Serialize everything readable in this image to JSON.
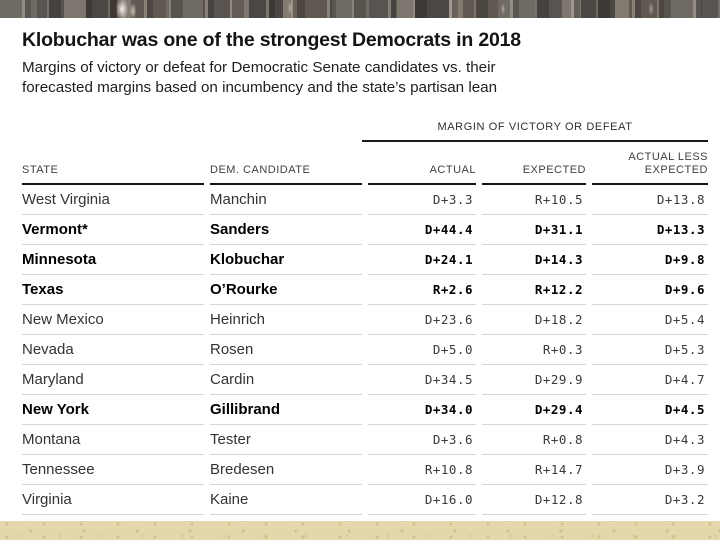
{
  "slide": {
    "top_photo_strip": "blurred-crowd-photo",
    "background_color": "#e8ddb8",
    "card_color": "#ffffff"
  },
  "header": {
    "title": "Klobuchar was one of the strongest Democrats in 2018",
    "subtitle_line1": "Margins of victory or defeat for Democratic Senate candidates vs. their",
    "subtitle_line2": "forecasted margins based on incumbency and the state’s partisan lean"
  },
  "chart_data": {
    "type": "table",
    "title": "Klobuchar was one of the strongest Democrats in 2018",
    "subtitle": "Margins of victory or defeat for Democratic Senate candidates vs. their forecasted margins based on incumbency and the state’s partisan lean",
    "column_group_header": "MARGIN OF VICTORY OR DEFEAT",
    "columns": {
      "state": "STATE",
      "candidate": "DEM. CANDIDATE",
      "actual": "ACTUAL",
      "expected": "EXPECTED",
      "diff": "ACTUAL LESS EXPECTED"
    },
    "rows": [
      {
        "state": "West Virginia",
        "candidate": "Manchin",
        "actual": "D+3.3",
        "expected": "R+10.5",
        "diff": "D+13.8",
        "bold": false
      },
      {
        "state": "Vermont*",
        "candidate": "Sanders",
        "actual": "D+44.4",
        "expected": "D+31.1",
        "diff": "D+13.3",
        "bold": true
      },
      {
        "state": "Minnesota",
        "candidate": "Klobuchar",
        "actual": "D+24.1",
        "expected": "D+14.3",
        "diff": "D+9.8",
        "bold": true
      },
      {
        "state": "Texas",
        "candidate": "O’Rourke",
        "actual": "R+2.6",
        "expected": "R+12.2",
        "diff": "D+9.6",
        "bold": true
      },
      {
        "state": "New Mexico",
        "candidate": "Heinrich",
        "actual": "D+23.6",
        "expected": "D+18.2",
        "diff": "D+5.4",
        "bold": false
      },
      {
        "state": "Nevada",
        "candidate": "Rosen",
        "actual": "D+5.0",
        "expected": "R+0.3",
        "diff": "D+5.3",
        "bold": false
      },
      {
        "state": "Maryland",
        "candidate": "Cardin",
        "actual": "D+34.5",
        "expected": "D+29.9",
        "diff": "D+4.7",
        "bold": false
      },
      {
        "state": "New York",
        "candidate": "Gillibrand",
        "actual": "D+34.0",
        "expected": "D+29.4",
        "diff": "D+4.5",
        "bold": true
      },
      {
        "state": "Montana",
        "candidate": "Tester",
        "actual": "D+3.6",
        "expected": "R+0.8",
        "diff": "D+4.3",
        "bold": false
      },
      {
        "state": "Tennessee",
        "candidate": "Bredesen",
        "actual": "R+10.8",
        "expected": "R+14.7",
        "diff": "D+3.9",
        "bold": false
      },
      {
        "state": "Virginia",
        "candidate": "Kaine",
        "actual": "D+16.0",
        "expected": "D+12.8",
        "diff": "D+3.2",
        "bold": false
      }
    ],
    "layout_hints": {
      "bold_rows_meaning": "highlighted candidates",
      "numeric_columns_right_aligned": true
    }
  }
}
